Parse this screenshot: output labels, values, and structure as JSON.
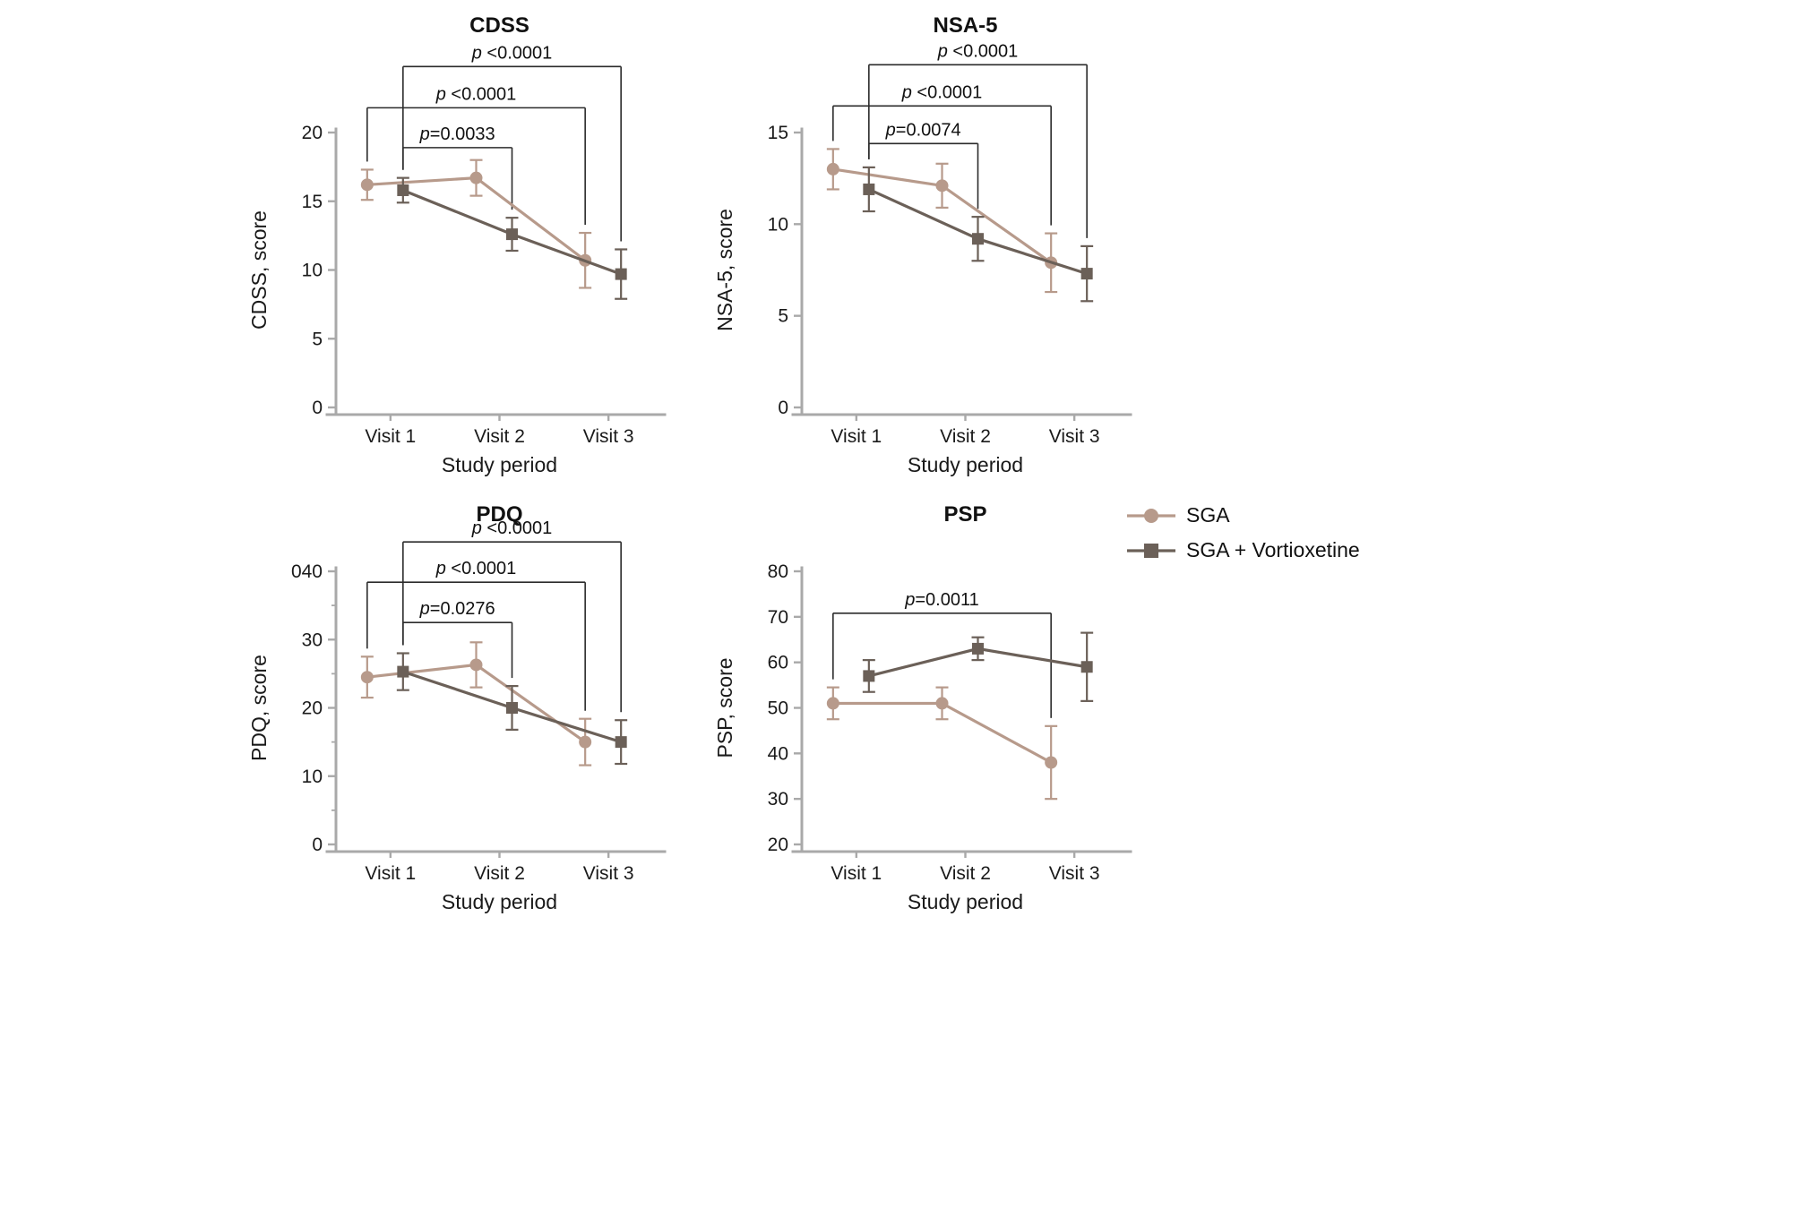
{
  "figure": {
    "colors": {
      "sga": "#b79a8b",
      "vortioxetine": "#6b6058",
      "axis": "#a9a9a9",
      "bracket": "#2b2b2b",
      "text": "#1a1a1a"
    },
    "legend": {
      "items": [
        {
          "label": "SGA",
          "marker": "circle",
          "color_key": "sga"
        },
        {
          "label": "SGA + Vortioxetine",
          "marker": "square",
          "color_key": "vortioxetine"
        }
      ]
    }
  },
  "chart_data": [
    {
      "id": "cdss",
      "type": "line",
      "title": "CDSS",
      "xlabel": "Study period",
      "ylabel": "CDSS, score",
      "categories": [
        "Visit 1",
        "Visit 2",
        "Visit 3"
      ],
      "ylim": [
        0,
        20
      ],
      "yticks": [
        {
          "v": 0,
          "label": "0"
        },
        {
          "v": 5,
          "label": "5"
        },
        {
          "v": 10,
          "label": "10"
        },
        {
          "v": 15,
          "label": "15"
        },
        {
          "v": 20,
          "label": "20"
        }
      ],
      "minor_yticks": [],
      "series": [
        {
          "name": "SGA",
          "color_key": "sga",
          "marker": "circle",
          "values": [
            16.2,
            16.7,
            10.7
          ],
          "errors": [
            1.1,
            1.3,
            2.0
          ]
        },
        {
          "name": "SGA + Vortioxetine",
          "color_key": "vortioxetine",
          "marker": "square",
          "values": [
            15.8,
            12.6,
            9.7
          ],
          "errors": [
            0.9,
            1.2,
            1.8
          ]
        }
      ],
      "significance": [
        {
          "label": "p=0.0033",
          "from": {
            "cat": 0,
            "series": 1
          },
          "to": {
            "cat": 1,
            "series": 1
          },
          "top": 18.9
        },
        {
          "label": "p <0.0001",
          "from": {
            "cat": 0,
            "series": 0
          },
          "to": {
            "cat": 2,
            "series": 0
          },
          "top": 21.8
        },
        {
          "label": "p <0.0001",
          "from": {
            "cat": 0,
            "series": 1
          },
          "to": {
            "cat": 2,
            "series": 1
          },
          "top": 24.8
        }
      ]
    },
    {
      "id": "nsa5",
      "type": "line",
      "title": "NSA-5",
      "xlabel": "Study period",
      "ylabel": "NSA-5, score",
      "categories": [
        "Visit 1",
        "Visit 2",
        "Visit 3"
      ],
      "ylim": [
        0,
        15
      ],
      "yticks": [
        {
          "v": 0,
          "label": "0"
        },
        {
          "v": 5,
          "label": "5"
        },
        {
          "v": 10,
          "label": "10"
        },
        {
          "v": 15,
          "label": "15"
        }
      ],
      "minor_yticks": [],
      "series": [
        {
          "name": "SGA",
          "color_key": "sga",
          "marker": "circle",
          "values": [
            13.0,
            12.1,
            7.9
          ],
          "errors": [
            1.1,
            1.2,
            1.6
          ]
        },
        {
          "name": "SGA + Vortioxetine",
          "color_key": "vortioxetine",
          "marker": "square",
          "values": [
            11.9,
            9.2,
            7.3
          ],
          "errors": [
            1.2,
            1.2,
            1.5
          ]
        }
      ],
      "significance": [
        {
          "label": "p=0.0074",
          "from": {
            "cat": 0,
            "series": 1
          },
          "to": {
            "cat": 1,
            "series": 1
          },
          "top": 14.4
        },
        {
          "label": "p <0.0001",
          "from": {
            "cat": 0,
            "series": 0
          },
          "to": {
            "cat": 2,
            "series": 0
          },
          "top": 16.45
        },
        {
          "label": "p <0.0001",
          "from": {
            "cat": 0,
            "series": 1
          },
          "to": {
            "cat": 2,
            "series": 1
          },
          "top": 18.7
        }
      ]
    },
    {
      "id": "pdq",
      "type": "line",
      "title": "PDQ",
      "xlabel": "Study period",
      "ylabel": "PDQ, score",
      "categories": [
        "Visit 1",
        "Visit 2",
        "Visit 3"
      ],
      "ylim": [
        0,
        40
      ],
      "yticks": [
        {
          "v": 0,
          "label": "0"
        },
        {
          "v": 10,
          "label": "10"
        },
        {
          "v": 20,
          "label": "20"
        },
        {
          "v": 30,
          "label": "30"
        },
        {
          "v": 40,
          "label": "040"
        }
      ],
      "minor_yticks": [
        5,
        15,
        25,
        35
      ],
      "series": [
        {
          "name": "SGA",
          "color_key": "sga",
          "marker": "circle",
          "values": [
            24.5,
            26.3,
            15.0
          ],
          "errors": [
            3.0,
            3.3,
            3.4
          ]
        },
        {
          "name": "SGA + Vortioxetine",
          "color_key": "vortioxetine",
          "marker": "square",
          "values": [
            25.3,
            20.0,
            15.0
          ],
          "errors": [
            2.7,
            3.2,
            3.2
          ]
        }
      ],
      "significance": [
        {
          "label": "p=0.0276",
          "from": {
            "cat": 0,
            "series": 1
          },
          "to": {
            "cat": 1,
            "series": 1
          },
          "top": 32.5
        },
        {
          "label": "p <0.0001",
          "from": {
            "cat": 0,
            "series": 0
          },
          "to": {
            "cat": 2,
            "series": 0
          },
          "top": 38.4
        },
        {
          "label": "p <0.0001",
          "from": {
            "cat": 0,
            "series": 1
          },
          "to": {
            "cat": 2,
            "series": 1
          },
          "top": 44.3
        }
      ]
    },
    {
      "id": "psp",
      "type": "line",
      "title": "PSP",
      "xlabel": "Study period",
      "ylabel": "PSP, score",
      "categories": [
        "Visit 1",
        "Visit 2",
        "Visit 3"
      ],
      "ylim": [
        20,
        80
      ],
      "yticks": [
        {
          "v": 20,
          "label": "20"
        },
        {
          "v": 30,
          "label": "30"
        },
        {
          "v": 40,
          "label": "40"
        },
        {
          "v": 50,
          "label": "50"
        },
        {
          "v": 60,
          "label": "60"
        },
        {
          "v": 70,
          "label": "70"
        },
        {
          "v": 80,
          "label": "80"
        }
      ],
      "minor_yticks": [],
      "series": [
        {
          "name": "SGA",
          "color_key": "sga",
          "marker": "circle",
          "values": [
            51,
            51,
            38
          ],
          "errors": [
            3.5,
            3.5,
            8.0
          ]
        },
        {
          "name": "SGA + Vortioxetine",
          "color_key": "vortioxetine",
          "marker": "square",
          "values": [
            57,
            63,
            59
          ],
          "errors": [
            3.5,
            2.5,
            7.5
          ]
        }
      ],
      "significance": [
        {
          "label": "p=0.0011",
          "from": {
            "cat": 0,
            "series": 0
          },
          "to": {
            "cat": 2,
            "series": 0
          },
          "top": 70.8
        }
      ]
    }
  ]
}
